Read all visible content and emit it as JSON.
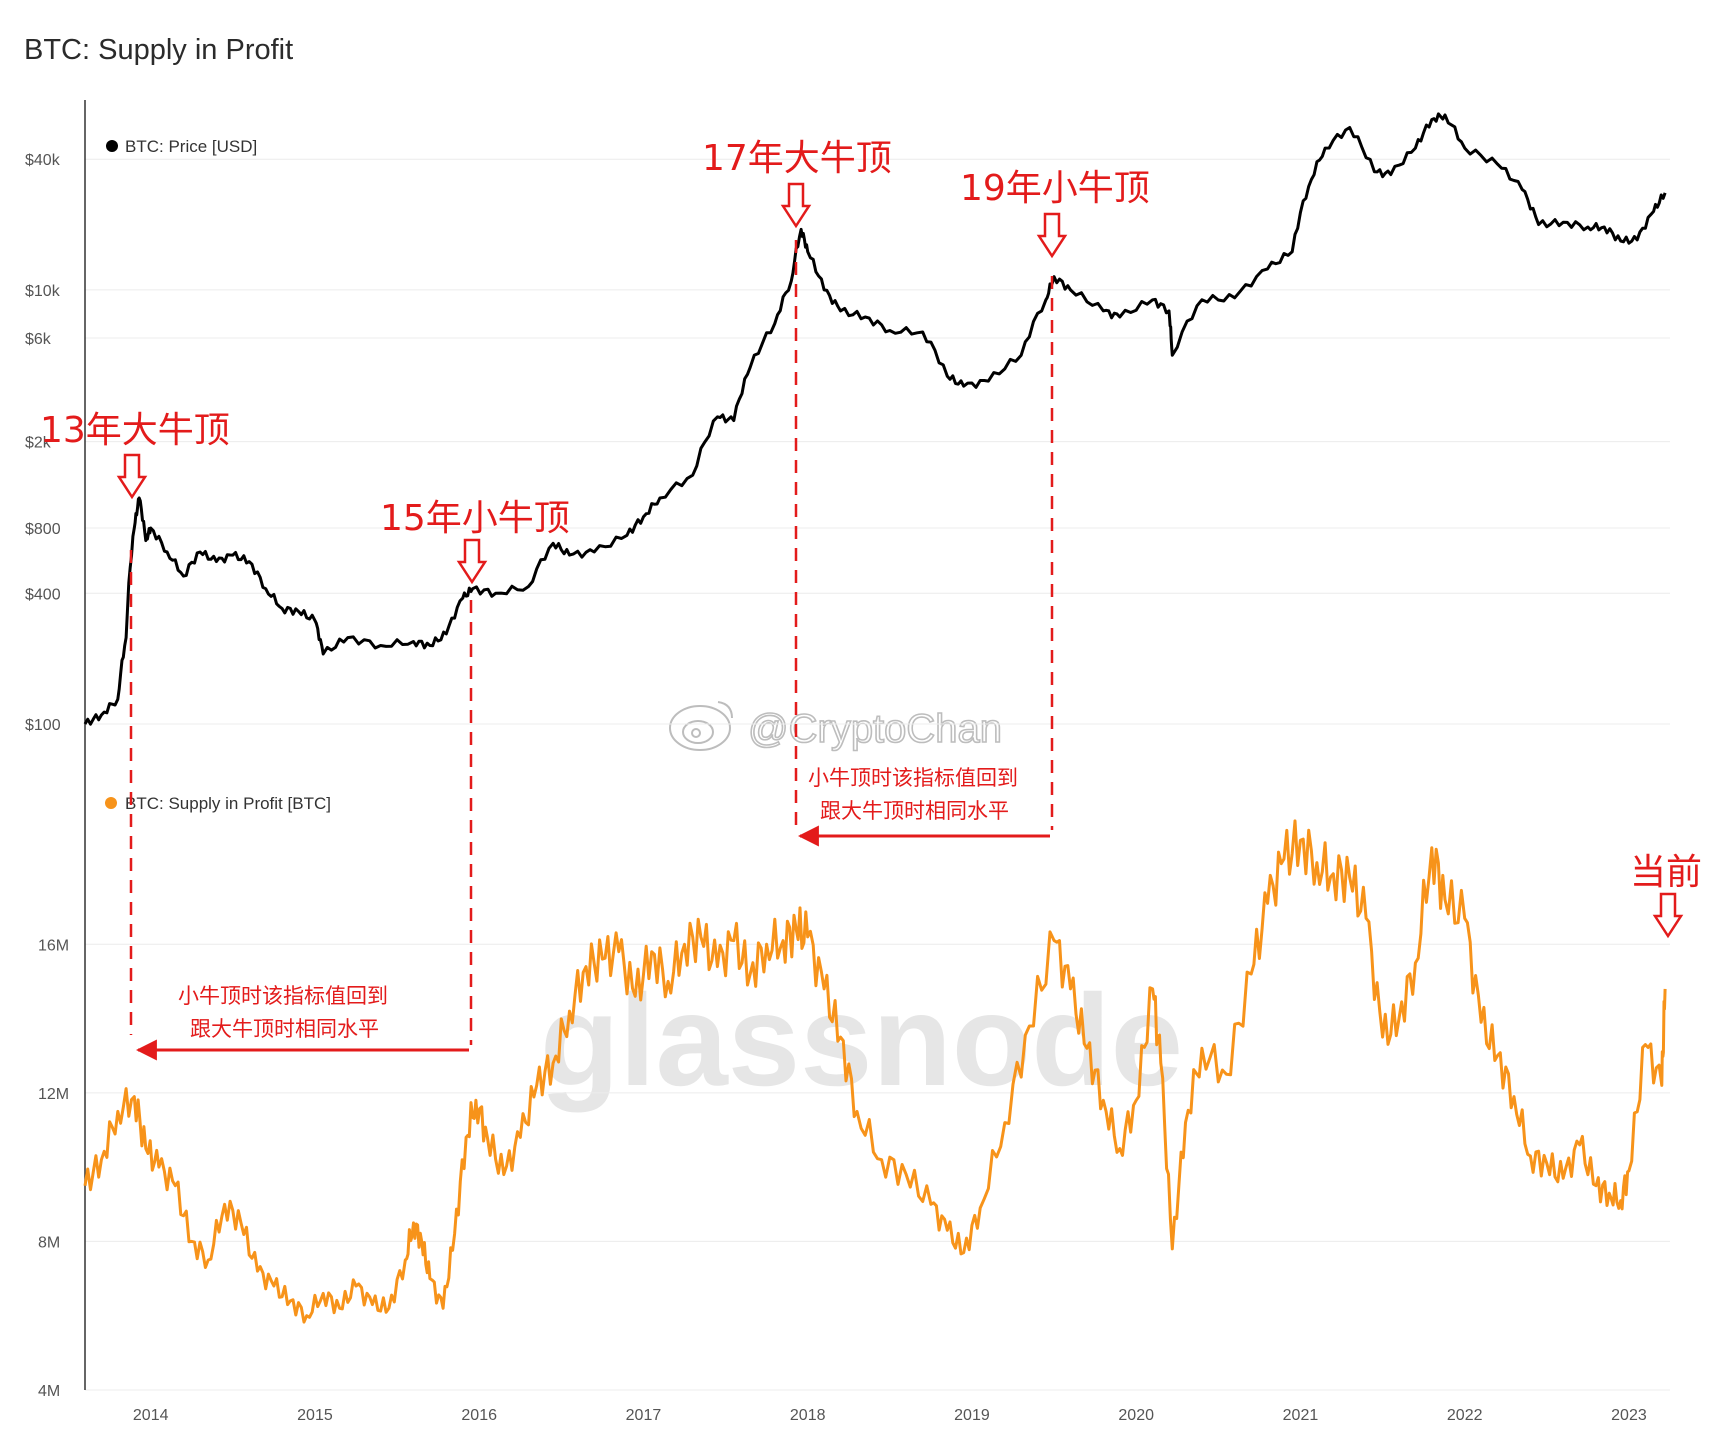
{
  "page_title": "BTC: Supply in Profit",
  "watermark": "glassnode",
  "social_tag": "@CryptoChan",
  "colors": {
    "price": "#000000",
    "supply": "#f7931a",
    "annotation": "#e31b1b",
    "grid": "#ececec"
  },
  "chart_data": [
    {
      "type": "line",
      "title": "BTC: Supply in Profit",
      "legend": "BTC: Price [USD]",
      "y_scale": "log",
      "ylim": [
        80,
        75000
      ],
      "y_ticks": [
        {
          "value": 100,
          "label": "$100"
        },
        {
          "value": 400,
          "label": "$400"
        },
        {
          "value": 800,
          "label": "$800"
        },
        {
          "value": 2000,
          "label": "$2k"
        },
        {
          "value": 6000,
          "label": "$6k"
        },
        {
          "value": 10000,
          "label": "$10k"
        },
        {
          "value": 40000,
          "label": "$40k"
        }
      ],
      "series": [
        {
          "name": "BTC: Price [USD]",
          "x": [
            2013.6,
            2013.7,
            2013.8,
            2013.85,
            2013.9,
            2013.93,
            2013.97,
            2014.0,
            2014.1,
            2014.2,
            2014.3,
            2014.4,
            2014.5,
            2014.6,
            2014.7,
            2014.8,
            2014.9,
            2015.0,
            2015.05,
            2015.2,
            2015.4,
            2015.6,
            2015.7,
            2015.8,
            2015.9,
            2015.96,
            2016.1,
            2016.3,
            2016.45,
            2016.55,
            2016.7,
            2016.9,
            2017.0,
            2017.1,
            2017.3,
            2017.45,
            2017.55,
            2017.65,
            2017.8,
            2017.9,
            2017.96,
            2018.0,
            2018.1,
            2018.2,
            2018.35,
            2018.5,
            2018.7,
            2018.85,
            2018.95,
            2019.1,
            2019.3,
            2019.45,
            2019.5,
            2019.6,
            2019.8,
            2019.9,
            2020.1,
            2020.2,
            2020.22,
            2020.4,
            2020.6,
            2020.8,
            2020.95,
            2021.05,
            2021.15,
            2021.3,
            2021.45,
            2021.55,
            2021.7,
            2021.8,
            2021.88,
            2022.0,
            2022.2,
            2022.35,
            2022.45,
            2022.6,
            2022.75,
            2022.85,
            2022.95,
            2023.05,
            2023.15,
            2023.22
          ],
          "values": [
            100,
            110,
            130,
            250,
            800,
            1100,
            700,
            800,
            620,
            480,
            620,
            560,
            600,
            560,
            420,
            340,
            330,
            300,
            210,
            250,
            230,
            240,
            230,
            260,
            380,
            420,
            400,
            430,
            680,
            600,
            620,
            740,
            900,
            1100,
            1400,
            2600,
            2500,
            4400,
            7000,
            11000,
            19000,
            15000,
            10000,
            8000,
            7500,
            6500,
            6400,
            4000,
            3600,
            3800,
            5000,
            9000,
            11500,
            10000,
            8000,
            7500,
            9000,
            8000,
            5000,
            9000,
            9200,
            12500,
            15000,
            30000,
            45000,
            56000,
            35000,
            34000,
            45000,
            61000,
            64000,
            45000,
            38000,
            29000,
            20000,
            20500,
            19500,
            19500,
            16800,
            17000,
            23000,
            28000
          ]
        }
      ]
    },
    {
      "type": "line",
      "legend": "BTC: Supply in Profit [BTC]",
      "ylim": [
        4000000,
        21500000
      ],
      "y_ticks": [
        {
          "value": 4000000,
          "label": "4M"
        },
        {
          "value": 8000000,
          "label": "8M"
        },
        {
          "value": 12000000,
          "label": "12M"
        },
        {
          "value": 16000000,
          "label": "16M"
        }
      ],
      "series": [
        {
          "name": "BTC: Supply in Profit [BTC]",
          "x": [
            2013.6,
            2013.7,
            2013.8,
            2013.9,
            2013.97,
            2014.05,
            2014.15,
            2014.25,
            2014.35,
            2014.45,
            2014.55,
            2014.65,
            2014.75,
            2014.85,
            2014.95,
            2015.05,
            2015.15,
            2015.25,
            2015.35,
            2015.45,
            2015.55,
            2015.6,
            2015.65,
            2015.7,
            2015.78,
            2015.85,
            2015.92,
            2015.98,
            2016.05,
            2016.15,
            2016.25,
            2016.35,
            2016.45,
            2016.55,
            2016.65,
            2016.75,
            2016.85,
            2016.95,
            2017.05,
            2017.15,
            2017.25,
            2017.35,
            2017.45,
            2017.55,
            2017.65,
            2017.75,
            2017.85,
            2017.93,
            2018.0,
            2018.1,
            2018.2,
            2018.3,
            2018.45,
            2018.6,
            2018.75,
            2018.85,
            2018.95,
            2019.05,
            2019.2,
            2019.35,
            2019.5,
            2019.6,
            2019.7,
            2019.8,
            2019.9,
            2020.0,
            2020.1,
            2020.15,
            2020.22,
            2020.3,
            2020.4,
            2020.55,
            2020.7,
            2020.8,
            2020.9,
            2021.0,
            2021.1,
            2021.2,
            2021.3,
            2021.4,
            2021.5,
            2021.6,
            2021.7,
            2021.8,
            2021.88,
            2022.0,
            2022.1,
            2022.2,
            2022.3,
            2022.4,
            2022.5,
            2022.6,
            2022.7,
            2022.8,
            2022.88,
            2022.95,
            2023.0,
            2023.1,
            2023.2,
            2023.22
          ],
          "values": [
            9500000,
            10200000,
            11500000,
            11900000,
            10500000,
            10000000,
            9500000,
            8000000,
            7500000,
            9000000,
            8500000,
            7200000,
            6800000,
            6400000,
            6000000,
            6600000,
            6200000,
            6800000,
            6300000,
            6200000,
            7500000,
            8500000,
            8000000,
            7000000,
            6200000,
            8200000,
            10800000,
            11800000,
            10800000,
            9800000,
            10800000,
            12200000,
            12800000,
            14200000,
            15400000,
            15600000,
            15800000,
            14600000,
            15800000,
            15000000,
            16000000,
            16200000,
            15400000,
            16100000,
            15200000,
            16000000,
            16100000,
            16400000,
            16200000,
            14800000,
            13500000,
            11500000,
            10200000,
            9800000,
            9000000,
            8300000,
            7700000,
            8900000,
            11200000,
            13800000,
            16100000,
            14800000,
            13200000,
            11800000,
            10500000,
            11800000,
            14800000,
            12800000,
            7800000,
            11200000,
            13200000,
            12500000,
            15200000,
            17100000,
            18300000,
            18800000,
            18200000,
            17900000,
            17800000,
            16700000,
            13500000,
            14000000,
            15500000,
            18600000,
            17200000,
            16700000,
            13900000,
            13000000,
            11900000,
            10300000,
            10100000,
            9700000,
            10600000,
            9500000,
            9300000,
            9100000,
            9900000,
            13300000,
            12200000,
            14800000
          ]
        }
      ]
    }
  ],
  "x_ticks": [
    "2014",
    "2015",
    "2016",
    "2017",
    "2018",
    "2019",
    "2020",
    "2021",
    "2022",
    "2023"
  ],
  "annotations": {
    "top2013": "13年大牛顶",
    "top2015": "15年小牛顶",
    "top2017": "17年大牛顶",
    "top2019": "19年小牛顶",
    "current": "当前",
    "note_line1": "小牛顶时该指标值回到",
    "note_line2": "跟大牛顶时相同水平"
  }
}
